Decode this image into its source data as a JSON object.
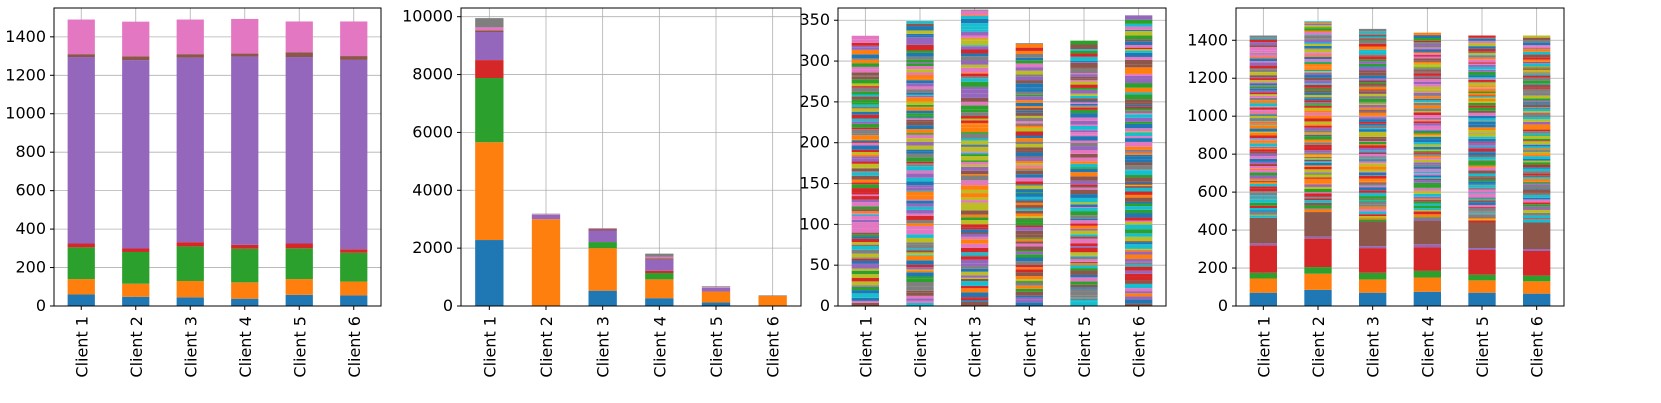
{
  "chart_data": [
    {
      "type": "bar",
      "stacked": true,
      "categories": [
        "Client 1",
        "Client 2",
        "Client 3",
        "Client 4",
        "Client 5",
        "Client 6"
      ],
      "ylim": [
        0,
        1550
      ],
      "yticks": [
        0,
        200,
        400,
        600,
        800,
        1000,
        1200,
        1400
      ],
      "grid": true,
      "series": [
        {
          "color": "#1f77b4",
          "values": [
            60,
            48,
            45,
            38,
            58,
            55
          ]
        },
        {
          "color": "#ff7f0e",
          "values": [
            80,
            68,
            85,
            85,
            82,
            72
          ]
        },
        {
          "color": "#2ca02c",
          "values": [
            165,
            165,
            180,
            175,
            160,
            150
          ]
        },
        {
          "color": "#d62728",
          "values": [
            20,
            18,
            22,
            20,
            25,
            18
          ]
        },
        {
          "color": "#9467bd",
          "values": [
            970,
            980,
            960,
            980,
            970,
            985
          ]
        },
        {
          "color": "#8c564b",
          "values": [
            15,
            20,
            18,
            15,
            25,
            20
          ]
        },
        {
          "color": "#e377c2",
          "values": [
            180,
            180,
            180,
            180,
            160,
            180
          ]
        }
      ]
    },
    {
      "type": "bar",
      "stacked": true,
      "categories": [
        "Client 1",
        "Client 2",
        "Client 3",
        "Client 4",
        "Client 5",
        "Client 6"
      ],
      "ylim": [
        0,
        10300
      ],
      "yticks": [
        0,
        2000,
        4000,
        6000,
        8000,
        10000
      ],
      "grid": true,
      "series": [
        {
          "color": "#1f77b4",
          "values": [
            2280,
            0,
            530,
            270,
            120,
            0
          ]
        },
        {
          "color": "#ff7f0e",
          "values": [
            3380,
            3000,
            1470,
            650,
            380,
            350
          ]
        },
        {
          "color": "#2ca02c",
          "values": [
            2220,
            0,
            210,
            220,
            0,
            0
          ]
        },
        {
          "color": "#d62728",
          "values": [
            620,
            0,
            0,
            80,
            0,
            0
          ]
        },
        {
          "color": "#9467bd",
          "values": [
            970,
            150,
            400,
            380,
            130,
            0
          ]
        },
        {
          "color": "#8c564b",
          "values": [
            60,
            0,
            50,
            50,
            0,
            0
          ]
        },
        {
          "color": "#e377c2",
          "values": [
            100,
            20,
            20,
            50,
            20,
            0
          ]
        },
        {
          "color": "#7f7f7f",
          "values": [
            320,
            20,
            10,
            110,
            30,
            20
          ]
        }
      ]
    },
    {
      "type": "bar",
      "stacked": true,
      "categories": [
        "Client 1",
        "Client 2",
        "Client 3",
        "Client 4",
        "Client 5",
        "Client 6"
      ],
      "ylim": [
        0,
        365
      ],
      "yticks": [
        0,
        50,
        100,
        150,
        200,
        250,
        300,
        350
      ],
      "grid": true,
      "totals": [
        331,
        349,
        363,
        322,
        325,
        356
      ],
      "segments": 100
    },
    {
      "type": "bar",
      "stacked": true,
      "categories": [
        "Client 1",
        "Client 2",
        "Client 3",
        "Client 4",
        "Client 5",
        "Client 6"
      ],
      "ylim": [
        0,
        1570
      ],
      "yticks": [
        0,
        200,
        400,
        600,
        800,
        1000,
        1200,
        1400
      ],
      "grid": true,
      "totals": [
        1425,
        1500,
        1460,
        1440,
        1425,
        1425
      ],
      "bottom_series": [
        {
          "color": "#1f77b4",
          "values": [
            70,
            85,
            70,
            75,
            70,
            65
          ]
        },
        {
          "color": "#ff7f0e",
          "values": [
            75,
            85,
            70,
            75,
            65,
            65
          ]
        },
        {
          "color": "#2ca02c",
          "values": [
            30,
            35,
            35,
            35,
            30,
            30
          ]
        },
        {
          "color": "#d62728",
          "values": [
            145,
            150,
            130,
            125,
            130,
            130
          ]
        },
        {
          "color": "#9467bd",
          "values": [
            10,
            10,
            10,
            15,
            10,
            10
          ]
        },
        {
          "color": "#8c564b",
          "values": [
            135,
            130,
            130,
            125,
            135,
            140
          ]
        }
      ],
      "segments": 100
    }
  ],
  "palette": [
    "#1f77b4",
    "#ff7f0e",
    "#2ca02c",
    "#d62728",
    "#9467bd",
    "#8c564b",
    "#e377c2",
    "#7f7f7f",
    "#bcbd22",
    "#17becf"
  ]
}
